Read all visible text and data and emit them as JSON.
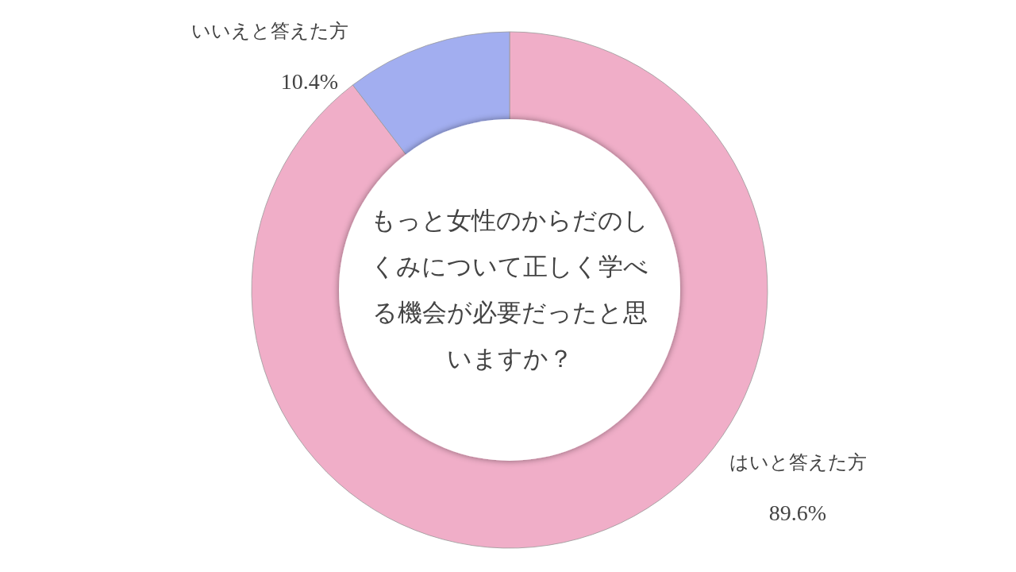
{
  "chart_data": {
    "type": "donut",
    "title": "もっと女性のからだのしくみについて正しく学べる機会が必要だったと思いますか？",
    "categories": [
      "はいと答えた方",
      "いいえと答えた方"
    ],
    "values": [
      89.6,
      10.4
    ],
    "colors": [
      "#f0aec8",
      "#a2aef0"
    ],
    "value_labels": [
      "89.6%",
      "10.4%"
    ]
  }
}
